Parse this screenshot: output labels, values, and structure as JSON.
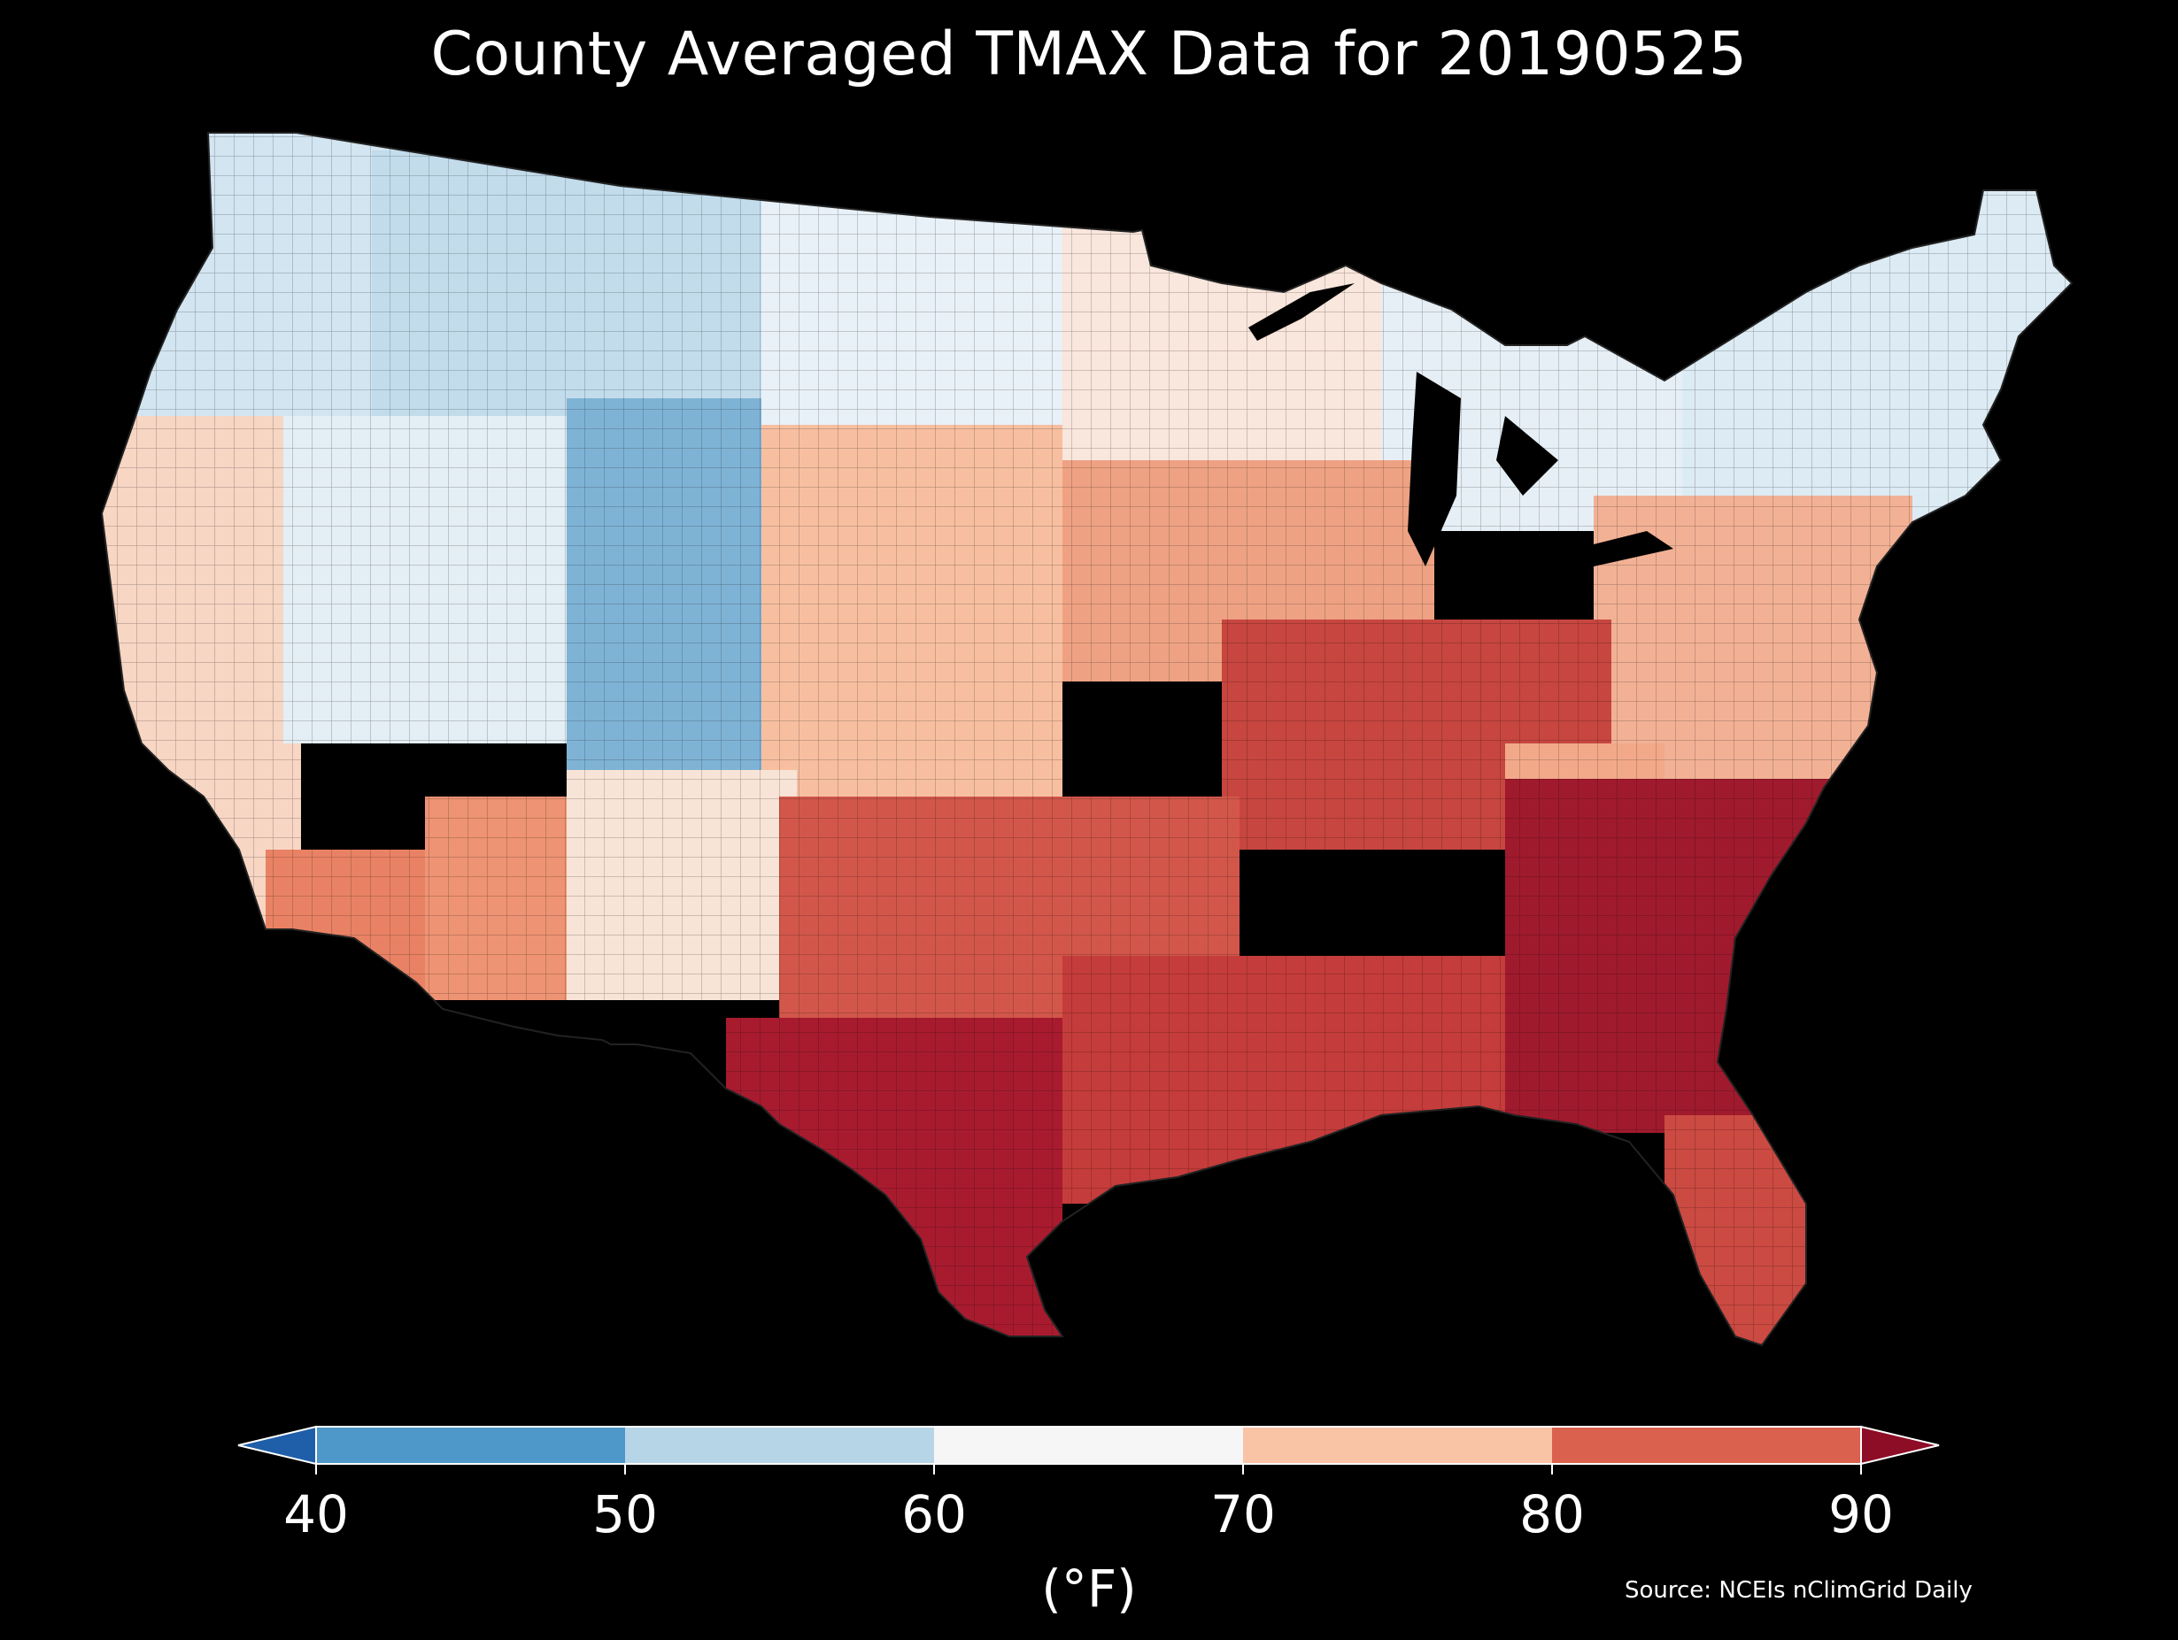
{
  "title": "County Averaged TMAX Data for 20190525",
  "colorbar": {
    "ticks": [
      "40",
      "50",
      "60",
      "70",
      "80",
      "90"
    ],
    "label": "(°F)",
    "bins": [
      {
        "range": "<40",
        "color": "#1f5ea8"
      },
      {
        "range": "40-50",
        "color": "#4d98c8"
      },
      {
        "range": "50-60",
        "color": "#b6d6e8"
      },
      {
        "range": "60-70",
        "color": "#f6f6f6"
      },
      {
        "range": "70-80",
        "color": "#f9c3a6"
      },
      {
        "range": "80-90",
        "color": "#d9614e"
      },
      {
        "range": ">90",
        "color": "#8d0c26"
      }
    ],
    "extend": "both"
  },
  "source": "Source: NCEIs nClimGrid Daily",
  "map": {
    "region": "Contiguous United States",
    "units": "°F",
    "variable": "TMAX",
    "date": "20190525",
    "regions": [
      {
        "name": "pacific-northwest",
        "color": "#d3e5f1"
      },
      {
        "name": "northern-rockies",
        "color": "#c2dcec"
      },
      {
        "name": "wyoming-colorado-rockies",
        "color": "#7fb3d6"
      },
      {
        "name": "northern-plains",
        "color": "#e8f1f7"
      },
      {
        "name": "great-basin",
        "color": "#e4eef5"
      },
      {
        "name": "california-coast",
        "color": "#f8d6c4"
      },
      {
        "name": "southern-california-desert",
        "color": "#e98264"
      },
      {
        "name": "arizona",
        "color": "#ee9373"
      },
      {
        "name": "new-mexico",
        "color": "#f8e3d7"
      },
      {
        "name": "great-plains",
        "color": "#f7bfa0"
      },
      {
        "name": "midwest",
        "color": "#eea283"
      },
      {
        "name": "upper-midwest",
        "color": "#f9e6dc"
      },
      {
        "name": "great-lakes-northeast",
        "color": "#e6eff6"
      },
      {
        "name": "mid-atlantic",
        "color": "#f2b195"
      },
      {
        "name": "ohio-valley",
        "color": "#c7463f"
      },
      {
        "name": "southern-plains",
        "color": "#d2574a"
      },
      {
        "name": "south-texas",
        "color": "#a81b2f"
      },
      {
        "name": "gulf-coast",
        "color": "#c43c3b"
      },
      {
        "name": "southeast",
        "color": "#a01a2d"
      },
      {
        "name": "florida",
        "color": "#cb4a42"
      },
      {
        "name": "appalachians",
        "color": "#f2a98a"
      },
      {
        "name": "new-england",
        "color": "#dcebf4"
      }
    ]
  }
}
